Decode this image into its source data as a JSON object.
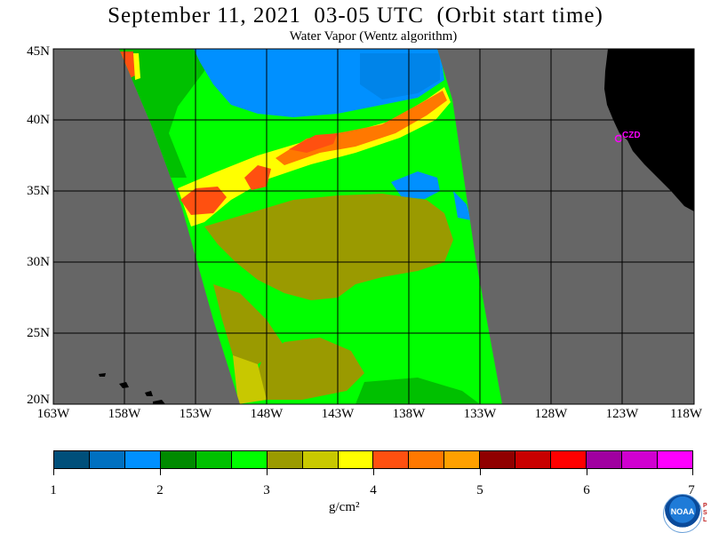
{
  "header": {
    "title": "September 11, 2021  03-05 UTC  (Orbit start time)",
    "subtitle": "Water Vapor (Wentz algorithm)"
  },
  "map": {
    "lat_labels": [
      "45N",
      "40N",
      "35N",
      "30N",
      "25N",
      "20N"
    ],
    "lon_labels": [
      "163W",
      "158W",
      "153W",
      "148W",
      "143W",
      "138W",
      "133W",
      "128W",
      "123W",
      "118W"
    ],
    "station_label": "CZD",
    "colors": {
      "background": "#666666",
      "land": "#000000",
      "grid": "#000000",
      "station": "#ff00ff"
    }
  },
  "colorbar": {
    "colors": [
      "#004f7a",
      "#0070c0",
      "#0090ff",
      "#008a00",
      "#00c000",
      "#00ff00",
      "#9a9a00",
      "#c8c800",
      "#ffff00",
      "#ff5010",
      "#ff7800",
      "#ffa000",
      "#900000",
      "#c80000",
      "#ff0000",
      "#a000a0",
      "#d000d0",
      "#ff00ff"
    ],
    "tick_labels": [
      "1",
      "2",
      "3",
      "4",
      "5",
      "6",
      "7"
    ],
    "units_label": "g/cm²"
  },
  "logo": {
    "text": "NOAA",
    "side_text": "PSL"
  }
}
